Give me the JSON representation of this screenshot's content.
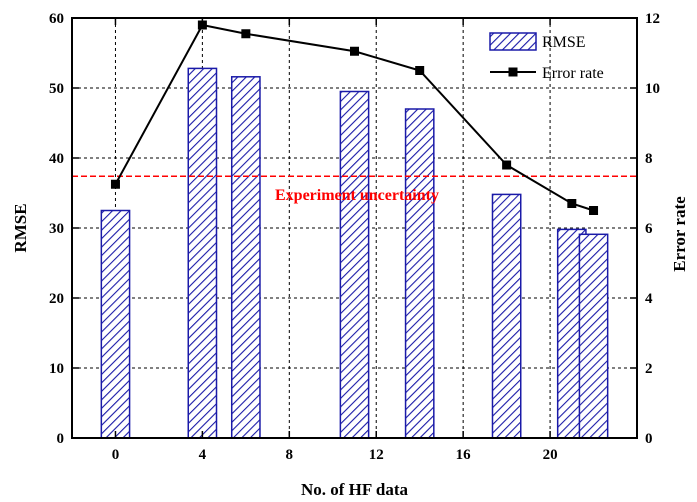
{
  "chart_data": {
    "type": "bar",
    "xlabel": "No. of HF data",
    "ylabel": "RMSE",
    "y2label": "Error rate",
    "xlim": [
      -2,
      24
    ],
    "ylim": [
      0,
      60
    ],
    "y2lim": [
      0,
      12
    ],
    "xticks": [
      0,
      4,
      8,
      12,
      16,
      20
    ],
    "yticks": [
      0,
      10,
      20,
      30,
      40,
      50,
      60
    ],
    "y2ticks": [
      0,
      2,
      4,
      6,
      8,
      10,
      12
    ],
    "grid": true,
    "legend_position": "top-right",
    "bar_series": {
      "name": "RMSE",
      "x": [
        0,
        4,
        6,
        11,
        14,
        18,
        21,
        22
      ],
      "values": [
        32.5,
        52.8,
        51.6,
        49.5,
        47.0,
        34.8,
        29.8,
        29.1
      ],
      "width": 1.3
    },
    "line_series": {
      "name": "Error rate",
      "axis": "right",
      "x": [
        0,
        4,
        6,
        11,
        14,
        18,
        21,
        22
      ],
      "values": [
        7.25,
        11.8,
        11.55,
        11.05,
        10.5,
        7.8,
        6.7,
        6.5
      ]
    },
    "reference_line": {
      "label": "Experiment uncertainty",
      "value": 37.4,
      "color": "#ff0000"
    },
    "colors": {
      "bar_stroke": "#1a1aa8",
      "hatch": "#1a1aa8",
      "line": "#000000",
      "grid": "#000000"
    }
  }
}
